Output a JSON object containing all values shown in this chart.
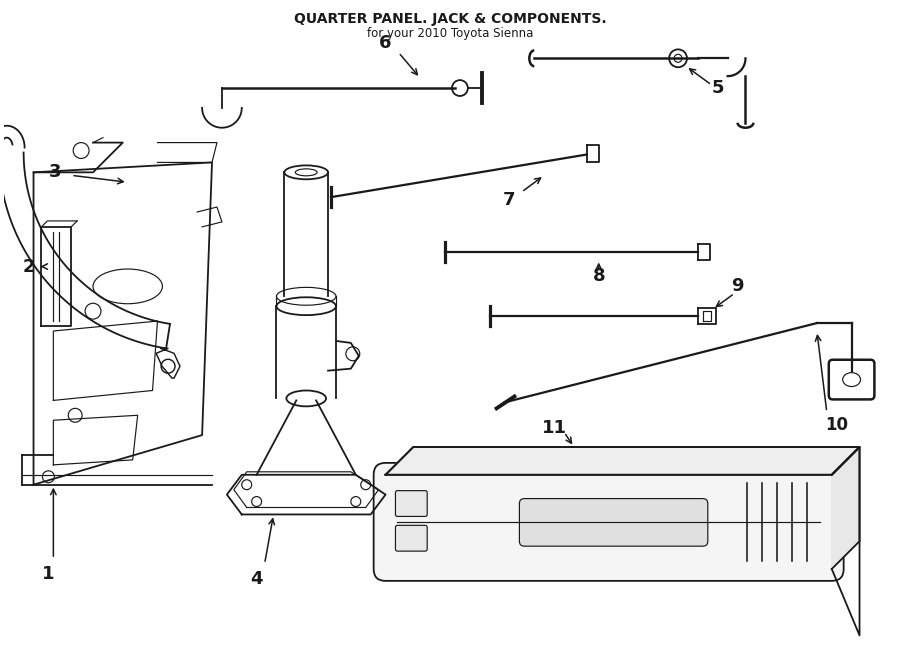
{
  "title": "QUARTER PANEL. JACK & COMPONENTS.",
  "subtitle": "for your 2010 Toyota Sienna",
  "bg_color": "#FFFFFF",
  "line_color": "#1a1a1a",
  "fig_width": 9.0,
  "fig_height": 6.61,
  "dpi": 100
}
